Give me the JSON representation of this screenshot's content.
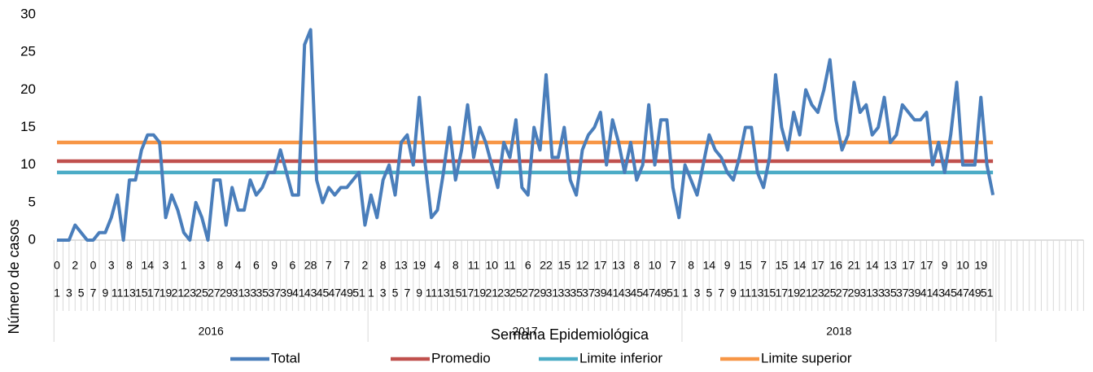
{
  "chart_data": {
    "type": "line",
    "y_label": "Número de casos",
    "x_label": "Semana Epidemiológica",
    "categories": [
      1,
      2,
      3,
      4,
      5,
      6,
      7,
      8,
      9,
      10,
      11,
      12,
      13,
      14,
      15,
      16,
      17,
      18,
      19,
      20,
      21,
      22,
      23,
      24,
      25,
      26,
      27,
      28,
      29,
      30,
      31,
      32,
      33,
      34,
      35,
      36,
      37,
      38,
      39,
      40,
      41,
      42,
      43,
      44,
      45,
      46,
      47,
      48,
      49,
      50,
      51,
      52,
      1,
      2,
      3,
      4,
      5,
      6,
      7,
      8,
      9,
      10,
      11,
      12,
      13,
      14,
      15,
      16,
      17,
      18,
      19,
      20,
      21,
      22,
      23,
      24,
      25,
      26,
      27,
      28,
      29,
      30,
      31,
      32,
      33,
      34,
      35,
      36,
      37,
      38,
      39,
      40,
      41,
      42,
      43,
      44,
      45,
      46,
      47,
      48,
      49,
      50,
      51,
      52,
      1,
      2,
      3,
      4,
      5,
      6,
      7,
      8,
      9,
      10,
      11,
      12,
      13,
      14,
      15,
      16,
      17,
      18,
      19,
      20,
      21,
      22,
      23,
      24,
      25,
      26,
      27,
      28,
      29,
      30,
      31,
      32,
      33,
      34,
      35,
      36,
      37,
      38,
      39,
      40,
      41,
      42,
      43,
      44,
      45,
      46,
      47,
      48,
      49,
      50,
      51,
      52
    ],
    "groups": [
      "2016",
      "2017",
      "2018"
    ],
    "series": [
      {
        "name": "Total",
        "color": "#4a7ebb",
        "values": [
          0,
          0,
          0,
          2,
          1,
          0,
          0,
          1,
          1,
          3,
          6,
          0,
          8,
          8,
          12,
          14,
          14,
          13,
          3,
          6,
          4,
          1,
          0,
          5,
          3,
          0,
          8,
          8,
          2,
          7,
          4,
          4,
          8,
          6,
          7,
          9,
          9,
          12,
          9,
          6,
          6,
          26,
          28,
          8,
          5,
          7,
          6,
          7,
          7,
          8,
          9,
          2,
          6,
          3,
          8,
          10,
          6,
          13,
          14,
          10,
          19,
          10,
          3,
          4,
          9,
          15,
          8,
          12,
          18,
          11,
          15,
          13,
          10,
          7,
          13,
          11,
          16,
          7,
          6,
          15,
          12,
          22,
          11,
          11,
          15,
          8,
          6,
          12,
          14,
          15,
          17,
          10,
          16,
          13,
          9,
          13,
          8,
          10,
          18,
          10,
          16,
          16,
          7,
          3,
          10,
          8,
          6,
          10,
          14,
          12,
          11,
          9,
          8,
          11,
          15,
          15,
          9,
          7,
          11,
          22,
          15,
          12,
          17,
          14,
          20,
          18,
          17,
          20,
          24,
          16,
          12,
          14,
          21,
          17,
          18,
          14,
          15,
          19,
          13,
          14,
          18,
          17,
          16,
          16,
          17,
          10,
          13,
          9,
          14,
          21,
          10,
          10,
          10,
          19,
          10,
          6
        ]
      },
      {
        "name": "Promedio",
        "color": "#c0504d",
        "values": [
          10.5,
          10.5,
          10.5,
          10.5,
          10.5,
          10.5,
          10.5,
          10.5,
          10.5,
          10.5,
          10.5,
          10.5,
          10.5,
          10.5,
          10.5,
          10.5,
          10.5,
          10.5,
          10.5,
          10.5,
          10.5,
          10.5,
          10.5,
          10.5,
          10.5,
          10.5,
          10.5,
          10.5,
          10.5,
          10.5,
          10.5,
          10.5,
          10.5,
          10.5,
          10.5,
          10.5,
          10.5,
          10.5,
          10.5,
          10.5,
          10.5,
          10.5,
          10.5,
          10.5,
          10.5,
          10.5,
          10.5,
          10.5,
          10.5,
          10.5,
          10.5,
          10.5,
          10.5,
          10.5,
          10.5,
          10.5,
          10.5,
          10.5,
          10.5,
          10.5,
          10.5,
          10.5,
          10.5,
          10.5,
          10.5,
          10.5,
          10.5,
          10.5,
          10.5,
          10.5,
          10.5,
          10.5,
          10.5,
          10.5,
          10.5,
          10.5,
          10.5,
          10.5,
          10.5,
          10.5,
          10.5,
          10.5,
          10.5,
          10.5,
          10.5,
          10.5,
          10.5,
          10.5,
          10.5,
          10.5,
          10.5,
          10.5,
          10.5,
          10.5,
          10.5,
          10.5,
          10.5,
          10.5,
          10.5,
          10.5,
          10.5,
          10.5,
          10.5,
          10.5,
          10.5,
          10.5,
          10.5,
          10.5,
          10.5,
          10.5,
          10.5,
          10.5,
          10.5,
          10.5,
          10.5,
          10.5,
          10.5,
          10.5,
          10.5,
          10.5,
          10.5,
          10.5,
          10.5,
          10.5,
          10.5,
          10.5,
          10.5,
          10.5,
          10.5,
          10.5,
          10.5,
          10.5,
          10.5,
          10.5,
          10.5,
          10.5,
          10.5,
          10.5,
          10.5,
          10.5,
          10.5,
          10.5,
          10.5,
          10.5,
          10.5,
          10.5,
          10.5,
          10.5,
          10.5,
          10.5,
          10.5,
          10.5,
          10.5,
          10.5,
          10.5,
          10.5
        ]
      },
      {
        "name": "Limite inferior",
        "color": "#4bacc6",
        "values": [
          9,
          9,
          9,
          9,
          9,
          9,
          9,
          9,
          9,
          9,
          9,
          9,
          9,
          9,
          9,
          9,
          9,
          9,
          9,
          9,
          9,
          9,
          9,
          9,
          9,
          9,
          9,
          9,
          9,
          9,
          9,
          9,
          9,
          9,
          9,
          9,
          9,
          9,
          9,
          9,
          9,
          9,
          9,
          9,
          9,
          9,
          9,
          9,
          9,
          9,
          9,
          9,
          9,
          9,
          9,
          9,
          9,
          9,
          9,
          9,
          9,
          9,
          9,
          9,
          9,
          9,
          9,
          9,
          9,
          9,
          9,
          9,
          9,
          9,
          9,
          9,
          9,
          9,
          9,
          9,
          9,
          9,
          9,
          9,
          9,
          9,
          9,
          9,
          9,
          9,
          9,
          9,
          9,
          9,
          9,
          9,
          9,
          9,
          9,
          9,
          9,
          9,
          9,
          9,
          9,
          9,
          9,
          9,
          9,
          9,
          9,
          9,
          9,
          9,
          9,
          9,
          9,
          9,
          9,
          9,
          9,
          9,
          9,
          9,
          9,
          9,
          9,
          9,
          9,
          9,
          9,
          9,
          9,
          9,
          9,
          9,
          9,
          9,
          9,
          9,
          9,
          9,
          9,
          9,
          9,
          9,
          9,
          9,
          9,
          9,
          9,
          9,
          9,
          9,
          9,
          9
        ]
      },
      {
        "name": "Limite superior",
        "color": "#f79646",
        "values": [
          13,
          13,
          13,
          13,
          13,
          13,
          13,
          13,
          13,
          13,
          13,
          13,
          13,
          13,
          13,
          13,
          13,
          13,
          13,
          13,
          13,
          13,
          13,
          13,
          13,
          13,
          13,
          13,
          13,
          13,
          13,
          13,
          13,
          13,
          13,
          13,
          13,
          13,
          13,
          13,
          13,
          13,
          13,
          13,
          13,
          13,
          13,
          13,
          13,
          13,
          13,
          13,
          13,
          13,
          13,
          13,
          13,
          13,
          13,
          13,
          13,
          13,
          13,
          13,
          13,
          13,
          13,
          13,
          13,
          13,
          13,
          13,
          13,
          13,
          13,
          13,
          13,
          13,
          13,
          13,
          13,
          13,
          13,
          13,
          13,
          13,
          13,
          13,
          13,
          13,
          13,
          13,
          13,
          13,
          13,
          13,
          13,
          13,
          13,
          13,
          13,
          13,
          13,
          13,
          13,
          13,
          13,
          13,
          13,
          13,
          13,
          13,
          13,
          13,
          13,
          13,
          13,
          13,
          13,
          13,
          13,
          13,
          13,
          13,
          13,
          13,
          13,
          13,
          13,
          13,
          13,
          13,
          13,
          13,
          13,
          13,
          13,
          13,
          13,
          13,
          13,
          13,
          13,
          13,
          13,
          13,
          13,
          13,
          13,
          13,
          13,
          13,
          13,
          13,
          13,
          13
        ]
      }
    ],
    "ylim": [
      0,
      30
    ],
    "yticks": [
      0,
      5,
      10,
      15,
      20,
      25,
      30
    ],
    "grid": false,
    "legend": "bottom"
  }
}
